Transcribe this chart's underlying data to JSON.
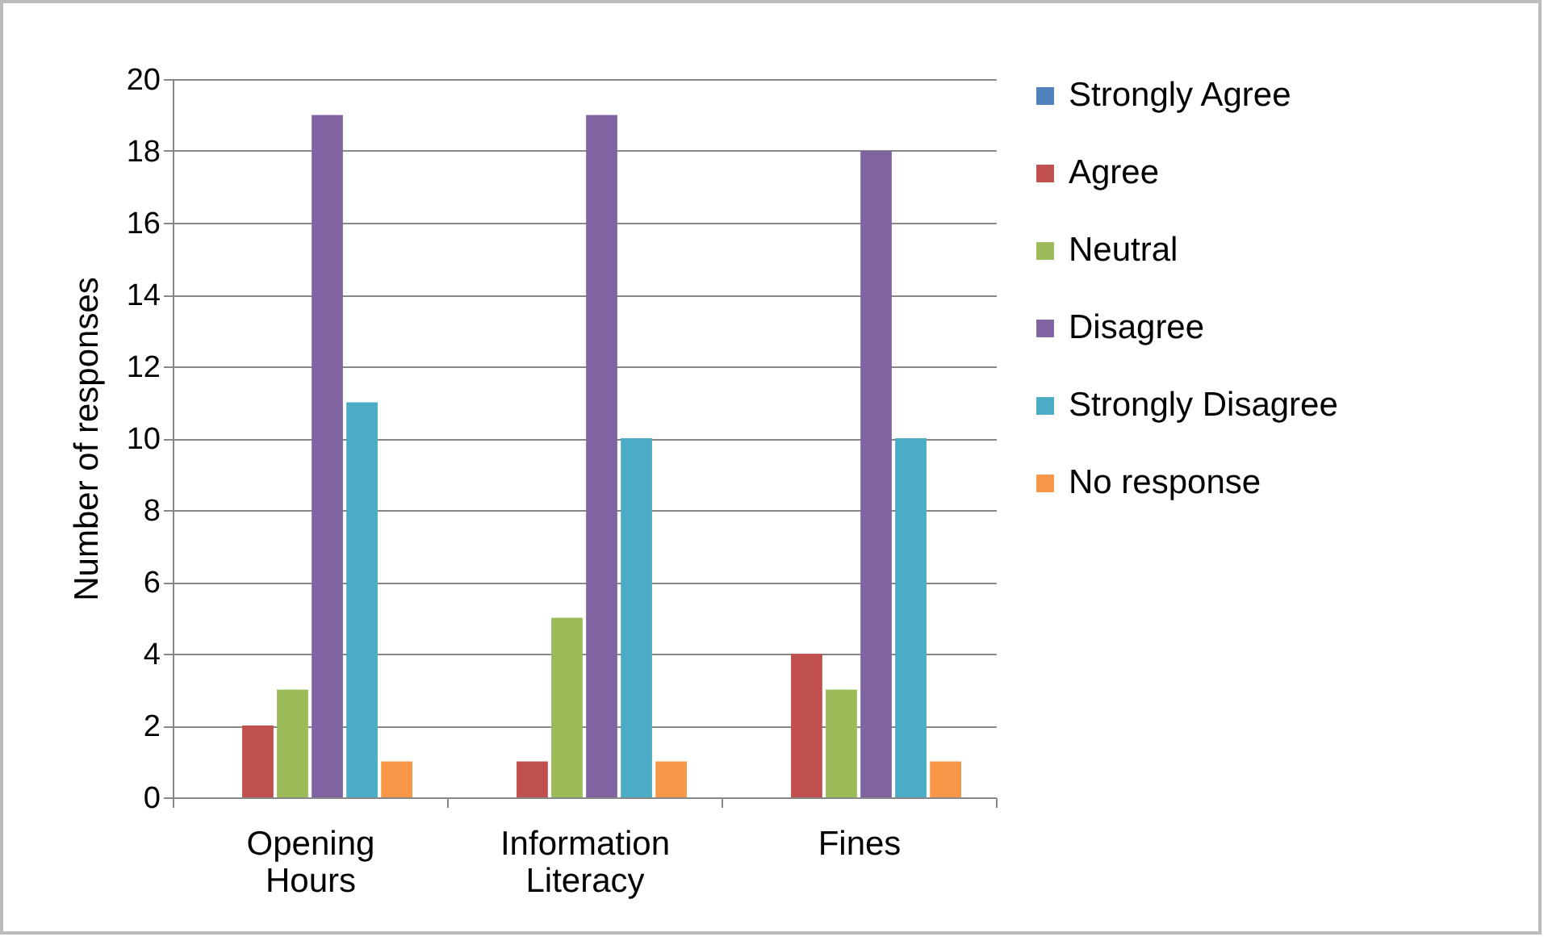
{
  "chart_data": {
    "type": "bar",
    "ylabel": "Number of responses",
    "categories": [
      "Opening Hours",
      "Information Literacy",
      "Fines"
    ],
    "series": [
      {
        "name": "Strongly Agree",
        "color": "#4f81bd",
        "values": [
          0,
          0,
          0
        ]
      },
      {
        "name": "Agree",
        "color": "#c0504d",
        "values": [
          2,
          1,
          4
        ]
      },
      {
        "name": "Neutral",
        "color": "#9bbb59",
        "values": [
          3,
          5,
          3
        ]
      },
      {
        "name": "Disagree",
        "color": "#8064a2",
        "values": [
          19,
          19,
          18
        ]
      },
      {
        "name": "Strongly Disagree",
        "color": "#4bacc6",
        "values": [
          11,
          10,
          10
        ]
      },
      {
        "name": "No response",
        "color": "#f79646",
        "values": [
          1,
          1,
          1
        ]
      }
    ],
    "ylim": [
      0,
      20
    ],
    "yticks": [
      0,
      2,
      4,
      6,
      8,
      10,
      12,
      14,
      16,
      18,
      20
    ],
    "grid": "y",
    "legend": "right"
  }
}
